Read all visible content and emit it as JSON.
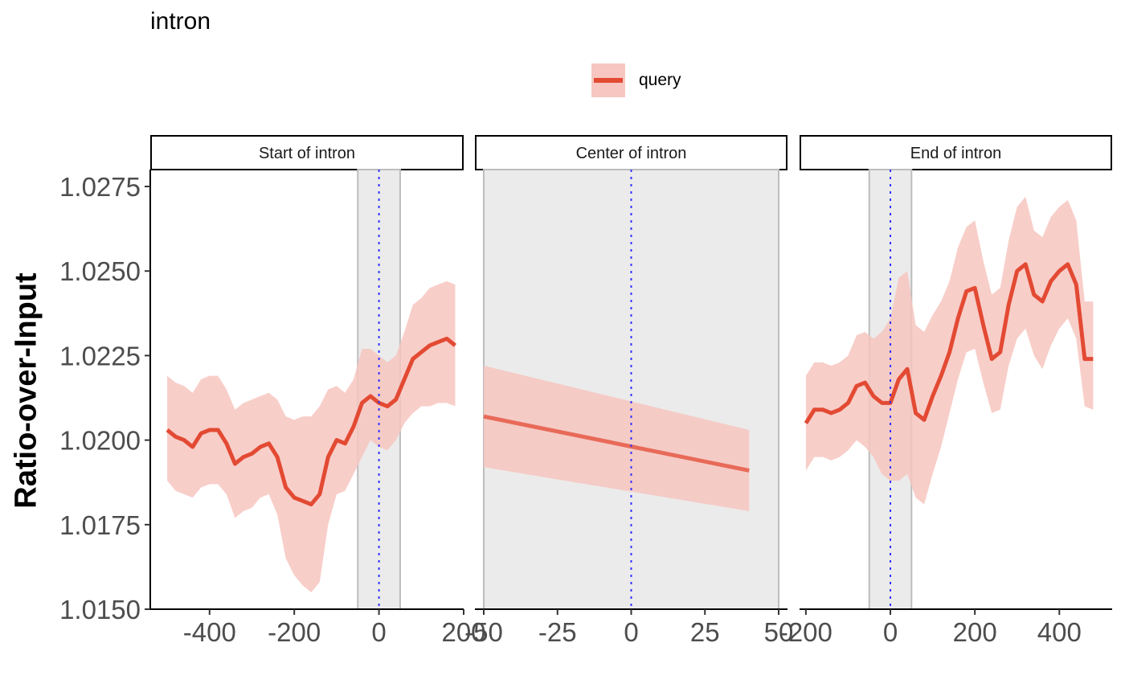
{
  "chart_data": {
    "type": "line",
    "title": "intron",
    "ylabel": "Ratio-over-Input",
    "xlabel": "",
    "ylim": [
      1.015,
      1.028
    ],
    "yticks": [
      1.015,
      1.0175,
      1.02,
      1.0225,
      1.025,
      1.0275
    ],
    "ytick_labels": [
      "1.0150",
      "1.0175",
      "1.0200",
      "1.0225",
      "1.0250",
      "1.0275"
    ],
    "legend": {
      "position": "top",
      "entries": [
        "query"
      ]
    },
    "colors": {
      "line": "#e34a33",
      "ribbon": "#f7c6c0",
      "marker": "#3333ff",
      "shade": "#ebebeb"
    },
    "panels": [
      {
        "strip": "Start of intron",
        "xlim": [
          -540,
          200
        ],
        "xticks": [
          -400,
          -200,
          0,
          200
        ],
        "xtick_labels": [
          "-400",
          "-200",
          "0",
          "200"
        ],
        "shade": [
          -50,
          50
        ],
        "marker": 0,
        "series": [
          {
            "name": "query",
            "x": [
              -500,
              -480,
              -460,
              -440,
              -420,
              -400,
              -380,
              -360,
              -340,
              -320,
              -300,
              -280,
              -260,
              -240,
              -220,
              -200,
              -180,
              -160,
              -140,
              -120,
              -100,
              -80,
              -60,
              -40,
              -20,
              0,
              20,
              40,
              60,
              80,
              100,
              120,
              140,
              160,
              180
            ],
            "y": [
              1.0203,
              1.0201,
              1.02,
              1.0198,
              1.0202,
              1.0203,
              1.0203,
              1.0199,
              1.0193,
              1.0195,
              1.0196,
              1.0198,
              1.0199,
              1.0195,
              1.0186,
              1.0183,
              1.0182,
              1.0181,
              1.0184,
              1.0195,
              1.02,
              1.0199,
              1.0204,
              1.0211,
              1.0213,
              1.0211,
              1.021,
              1.0212,
              1.0218,
              1.0224,
              1.0226,
              1.0228,
              1.0229,
              1.023,
              1.0228
            ],
            "lower": [
              1.0188,
              1.0185,
              1.0184,
              1.0183,
              1.0186,
              1.0187,
              1.0187,
              1.0184,
              1.0177,
              1.0179,
              1.018,
              1.0183,
              1.0184,
              1.0178,
              1.0165,
              1.016,
              1.0157,
              1.0155,
              1.0158,
              1.0175,
              1.0184,
              1.0185,
              1.019,
              1.0195,
              1.02,
              1.0198,
              1.0197,
              1.02,
              1.0205,
              1.0208,
              1.021,
              1.021,
              1.0211,
              1.0211,
              1.021
            ],
            "upper": [
              1.0219,
              1.0217,
              1.0216,
              1.0214,
              1.0218,
              1.0219,
              1.0219,
              1.0215,
              1.0209,
              1.0211,
              1.0212,
              1.0213,
              1.0214,
              1.0212,
              1.0207,
              1.0206,
              1.0207,
              1.0207,
              1.021,
              1.0215,
              1.0216,
              1.0214,
              1.0218,
              1.0227,
              1.0227,
              1.0225,
              1.0223,
              1.0225,
              1.0232,
              1.024,
              1.0242,
              1.0245,
              1.0246,
              1.0247,
              1.0246
            ]
          }
        ]
      },
      {
        "strip": "Center of intron",
        "xlim": [
          -53,
          53
        ],
        "xticks": [
          -50,
          -25,
          0,
          25,
          50
        ],
        "xtick_labels": [
          "-50",
          "-25",
          "0",
          "25",
          "50"
        ],
        "shade": [
          -50,
          50
        ],
        "marker": 0,
        "series": [
          {
            "name": "query",
            "x": [
              -50,
              40
            ],
            "y": [
              1.0207,
              1.0191
            ],
            "lower": [
              1.0192,
              1.0179
            ],
            "upper": [
              1.0222,
              1.0203
            ]
          }
        ]
      },
      {
        "strip": "End of intron",
        "xlim": [
          -215,
          525
        ],
        "xticks": [
          -200,
          0,
          200,
          400
        ],
        "xtick_labels": [
          "-200",
          "0",
          "200",
          "400"
        ],
        "shade": [
          -50,
          50
        ],
        "marker": 0,
        "series": [
          {
            "name": "query",
            "x": [
              -200,
              -180,
              -160,
              -140,
              -120,
              -100,
              -80,
              -60,
              -40,
              -20,
              0,
              20,
              40,
              60,
              80,
              100,
              120,
              140,
              160,
              180,
              200,
              220,
              240,
              260,
              280,
              300,
              320,
              340,
              360,
              380,
              400,
              420,
              440,
              460,
              480
            ],
            "y": [
              1.0205,
              1.0209,
              1.0209,
              1.0208,
              1.0209,
              1.0211,
              1.0216,
              1.0217,
              1.0213,
              1.0211,
              1.0211,
              1.0218,
              1.0221,
              1.0208,
              1.0206,
              1.0213,
              1.0219,
              1.0226,
              1.0236,
              1.0244,
              1.0245,
              1.0234,
              1.0224,
              1.0226,
              1.024,
              1.025,
              1.0252,
              1.0243,
              1.0241,
              1.0247,
              1.025,
              1.0252,
              1.0246,
              1.0224,
              1.0224
            ],
            "lower": [
              1.0191,
              1.0195,
              1.0195,
              1.0194,
              1.0195,
              1.0197,
              1.02,
              1.0198,
              1.0195,
              1.019,
              1.0188,
              1.0188,
              1.019,
              1.0183,
              1.0181,
              1.019,
              1.0198,
              1.0208,
              1.0218,
              1.0226,
              1.0227,
              1.0217,
              1.0208,
              1.0209,
              1.0222,
              1.023,
              1.0233,
              1.0225,
              1.0221,
              1.0228,
              1.0233,
              1.0236,
              1.023,
              1.021,
              1.0209
            ],
            "upper": [
              1.0219,
              1.0223,
              1.0223,
              1.0222,
              1.0223,
              1.0225,
              1.0231,
              1.0232,
              1.023,
              1.0232,
              1.0236,
              1.0248,
              1.025,
              1.0234,
              1.0232,
              1.0237,
              1.0241,
              1.0247,
              1.0257,
              1.0263,
              1.0265,
              1.0253,
              1.0243,
              1.0245,
              1.0259,
              1.0269,
              1.0272,
              1.0262,
              1.026,
              1.0266,
              1.0269,
              1.0271,
              1.0265,
              1.0241,
              1.0241
            ]
          }
        ]
      }
    ]
  }
}
